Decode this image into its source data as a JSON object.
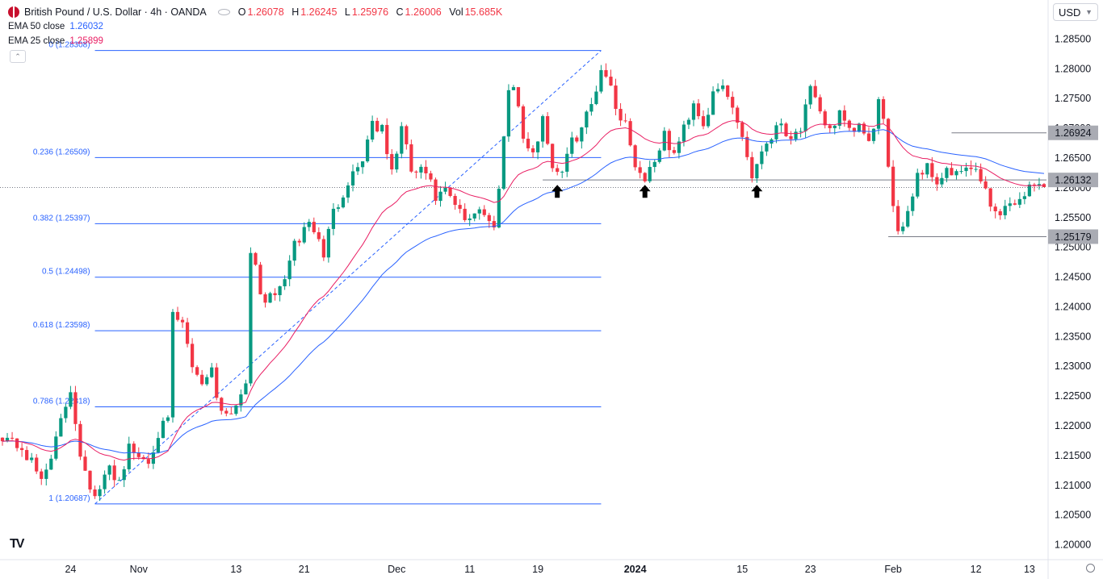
{
  "legend": {
    "symbol": "British Pound / U.S. Dollar · 4h · OANDA",
    "o_label": "O",
    "o_value": "1.26078",
    "h_label": "H",
    "h_value": "1.26245",
    "l_label": "L",
    "l_value": "1.25976",
    "c_label": "C",
    "c_value": "1.26006",
    "vol_label": "Vol",
    "vol_value": "15.685K",
    "ema50_name": "EMA 50 close",
    "ema50_value": "1.26032",
    "ema25_name": "EMA 25 close",
    "ema25_value": "1.25899"
  },
  "currency_button": "USD",
  "colors": {
    "up": "#089981",
    "down": "#f23645",
    "ema50": "#2962ff",
    "ema25": "#e91e63",
    "fib": "#2962ff",
    "level": "#787b86",
    "label_bg": "#a9abb3",
    "axis_text": "#131722"
  },
  "chart_data": {
    "type": "candlestick",
    "title": "British Pound / U.S. Dollar · 4h · OANDA",
    "ylim": [
      1.1975,
      1.2875
    ],
    "y_ticks": [
      "1.20000",
      "1.20500",
      "1.21000",
      "1.21500",
      "1.22000",
      "1.22500",
      "1.23000",
      "1.23500",
      "1.24000",
      "1.24500",
      "1.25000",
      "1.25500",
      "1.26000",
      "1.26500",
      "1.27000",
      "1.27500",
      "1.28000",
      "1.28500"
    ],
    "x_ticks": [
      {
        "label": "24",
        "bar": 14
      },
      {
        "label": "Nov",
        "bar": 28
      },
      {
        "label": "13",
        "bar": 48
      },
      {
        "label": "21",
        "bar": 62
      },
      {
        "label": "Dec",
        "bar": 81
      },
      {
        "label": "11",
        "bar": 96
      },
      {
        "label": "19",
        "bar": 110
      },
      {
        "label": "2024",
        "bar": 130,
        "bold": true
      },
      {
        "label": "15",
        "bar": 152
      },
      {
        "label": "23",
        "bar": 166
      },
      {
        "label": "Feb",
        "bar": 183
      },
      {
        "label": "12",
        "bar": 200
      },
      {
        "label": "13",
        "bar": 211
      }
    ],
    "bars_total": 215,
    "close_path": [
      [
        0,
        1.2185
      ],
      [
        4,
        1.2162
      ],
      [
        8,
        1.211
      ],
      [
        11,
        1.2175
      ],
      [
        14,
        1.2262
      ],
      [
        16,
        1.2155
      ],
      [
        19,
        1.2075
      ],
      [
        22,
        1.2128
      ],
      [
        24,
        1.2108
      ],
      [
        26,
        1.2162
      ],
      [
        28,
        1.2148
      ],
      [
        30,
        1.2142
      ],
      [
        32,
        1.219
      ],
      [
        34,
        1.2205
      ],
      [
        35,
        1.2385
      ],
      [
        37,
        1.2368
      ],
      [
        39,
        1.2302
      ],
      [
        41,
        1.2275
      ],
      [
        43,
        1.2295
      ],
      [
        44,
        1.225
      ],
      [
        46,
        1.222
      ],
      [
        48,
        1.2235
      ],
      [
        50,
        1.2278
      ],
      [
        51,
        1.25
      ],
      [
        53,
        1.242
      ],
      [
        55,
        1.2412
      ],
      [
        57,
        1.243
      ],
      [
        60,
        1.25
      ],
      [
        63,
        1.2545
      ],
      [
        66,
        1.249
      ],
      [
        68,
        1.2558
      ],
      [
        71,
        1.2612
      ],
      [
        74,
        1.265
      ],
      [
        76,
        1.2712
      ],
      [
        78,
        1.2695
      ],
      [
        80,
        1.2625
      ],
      [
        82,
        1.27
      ],
      [
        84,
        1.2628
      ],
      [
        87,
        1.2625
      ],
      [
        89,
        1.2582
      ],
      [
        91,
        1.2592
      ],
      [
        93,
        1.257
      ],
      [
        95,
        1.2545
      ],
      [
        98,
        1.2568
      ],
      [
        101,
        1.253
      ],
      [
        102,
        1.2608
      ],
      [
        104,
        1.2765
      ],
      [
        105,
        1.278
      ],
      [
        107,
        1.2685
      ],
      [
        109,
        1.265
      ],
      [
        111,
        1.2722
      ],
      [
        113,
        1.2635
      ],
      [
        115,
        1.263
      ],
      [
        117,
        1.2675
      ],
      [
        119,
        1.2702
      ],
      [
        121,
        1.274
      ],
      [
        123,
        1.28
      ],
      [
        124,
        1.2795
      ],
      [
        126,
        1.2735
      ],
      [
        128,
        1.271
      ],
      [
        130,
        1.264
      ],
      [
        132,
        1.2615
      ],
      [
        134,
        1.265
      ],
      [
        136,
        1.2685
      ],
      [
        138,
        1.2655
      ],
      [
        140,
        1.27
      ],
      [
        142,
        1.2745
      ],
      [
        144,
        1.2708
      ],
      [
        146,
        1.2752
      ],
      [
        148,
        1.277
      ],
      [
        150,
        1.2735
      ],
      [
        152,
        1.269
      ],
      [
        154,
        1.2618
      ],
      [
        156,
        1.2665
      ],
      [
        158,
        1.269
      ],
      [
        160,
        1.271
      ],
      [
        162,
        1.2685
      ],
      [
        164,
        1.2702
      ],
      [
        166,
        1.2762
      ],
      [
        168,
        1.2722
      ],
      [
        170,
        1.27
      ],
      [
        172,
        1.2722
      ],
      [
        174,
        1.269
      ],
      [
        176,
        1.2705
      ],
      [
        178,
        1.267
      ],
      [
        180,
        1.2745
      ],
      [
        181,
        1.2705
      ],
      [
        182,
        1.2625
      ],
      [
        184,
        1.253
      ],
      [
        186,
        1.256
      ],
      [
        188,
        1.2625
      ],
      [
        190,
        1.2635
      ],
      [
        192,
        1.2612
      ],
      [
        194,
        1.2628
      ],
      [
        196,
        1.2618
      ],
      [
        198,
        1.2635
      ],
      [
        200,
        1.2622
      ],
      [
        202,
        1.26
      ],
      [
        204,
        1.2555
      ],
      [
        206,
        1.2568
      ],
      [
        208,
        1.2575
      ],
      [
        210,
        1.2592
      ],
      [
        212,
        1.2605
      ],
      [
        214,
        1.2601
      ]
    ],
    "series": [
      {
        "name": "EMA 50 close",
        "period": 50,
        "last": "1.26032"
      },
      {
        "name": "EMA 25 close",
        "period": 25,
        "last": "1.25899"
      }
    ],
    "fibonacci": {
      "from_bar": 19,
      "to_bar": 123,
      "levels": [
        {
          "ratio": "0",
          "label": "0 (1.28308)",
          "price": 1.28308
        },
        {
          "ratio": "0.236",
          "label": "0.236 (1.26509)",
          "price": 1.26509
        },
        {
          "ratio": "0.382",
          "label": "0.382 (1.25397)",
          "price": 1.25397
        },
        {
          "ratio": "0.5",
          "label": "0.5 (1.24498)",
          "price": 1.24498
        },
        {
          "ratio": "0.618",
          "label": "0.618 (1.23598)",
          "price": 1.23598
        },
        {
          "ratio": "0.786",
          "label": "0.786 (1.22318)",
          "price": 1.22318
        },
        {
          "ratio": "1",
          "label": "1 (1.20687)",
          "price": 1.20687
        }
      ]
    },
    "horizontal_levels": [
      {
        "label": "1.26924",
        "price": 1.26924,
        "from_bar": 195
      },
      {
        "label": "1.26132",
        "price": 1.26132,
        "from_bar": 111
      },
      {
        "label": "1.25179",
        "price": 1.25179,
        "from_bar": 182
      }
    ],
    "current_price": 1.26006,
    "arrows_at_bars": [
      114,
      132,
      155
    ]
  }
}
